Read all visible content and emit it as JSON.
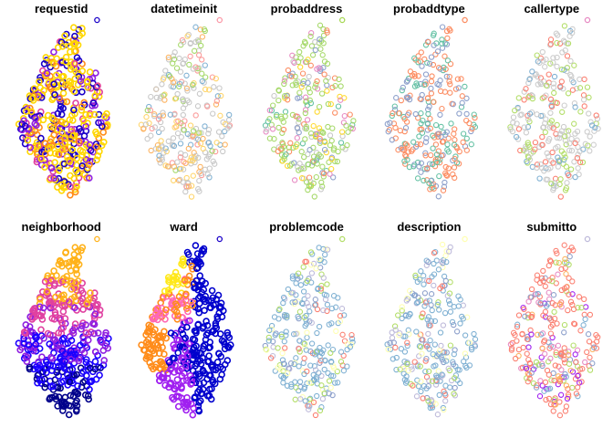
{
  "chart_data": [
    {
      "type": "scatter",
      "title": "requestid",
      "style": "mixed",
      "palette": [
        "#1a00c8",
        "#ffd700",
        "#ff8c1a",
        "#e040a0",
        "#8f1fe0"
      ],
      "legend_color": "#1a00c8"
    },
    {
      "type": "scatter",
      "title": "datetimeinit",
      "style": "ring",
      "palette": [
        "#c8c8c8",
        "#a6d96a",
        "#ffd56b",
        "#fb9a99",
        "#80b1d3",
        "#fdb462"
      ],
      "legend_color": "#fb9aa8"
    },
    {
      "type": "scatter",
      "title": "probaddress",
      "style": "ring",
      "palette": [
        "#a6d96a",
        "#c8c8c8",
        "#e78ac3",
        "#8da0cb",
        "#ffd92f",
        "#fc8d62",
        "#66c2a5"
      ],
      "legend_color": "#a6d854"
    },
    {
      "type": "scatter",
      "title": "probaddtype",
      "style": "ring",
      "palette": [
        "#fc8d62",
        "#66c2a5",
        "#8da0cb"
      ],
      "legend_color": "#fc8d62"
    },
    {
      "type": "scatter",
      "title": "callertype",
      "style": "ring",
      "palette": [
        "#cccccc",
        "#b3de69",
        "#fb8072",
        "#80b1d3"
      ],
      "legend_color": "#e78ac3"
    },
    {
      "type": "scatter",
      "title": "neighborhood",
      "style": "region",
      "palette": [
        "#00008b",
        "#1a00ff",
        "#8f1fe0",
        "#e040a0",
        "#ffb21a"
      ],
      "legend_color": "#ffb21a"
    },
    {
      "type": "scatter",
      "title": "ward",
      "style": "ward",
      "palette": [
        "#0000cd",
        "#ffe81a",
        "#ff8c1a",
        "#a020f0",
        "#ff69b4"
      ],
      "legend_color": "#1a00c8"
    },
    {
      "type": "scatter",
      "title": "problemcode",
      "style": "ring",
      "palette": [
        "#80b1d3",
        "#8da0cb",
        "#ffffb3",
        "#b3de69",
        "#fb8072",
        "#bebada"
      ],
      "legend_color": "#b3de69"
    },
    {
      "type": "scatter",
      "title": "description",
      "style": "ring",
      "palette": [
        "#80b1d3",
        "#ffffb3",
        "#8da0cb",
        "#b3de69",
        "#fb8072",
        "#bebada"
      ],
      "legend_color": "#ffffb3"
    },
    {
      "type": "scatter",
      "title": "submitto",
      "style": "ring",
      "palette": [
        "#fb8072",
        "#fdb462",
        "#8da0cb",
        "#e78ac3",
        "#a020f0",
        "#80b1d3",
        "#b3de69"
      ],
      "legend_color": "#bebada"
    }
  ]
}
